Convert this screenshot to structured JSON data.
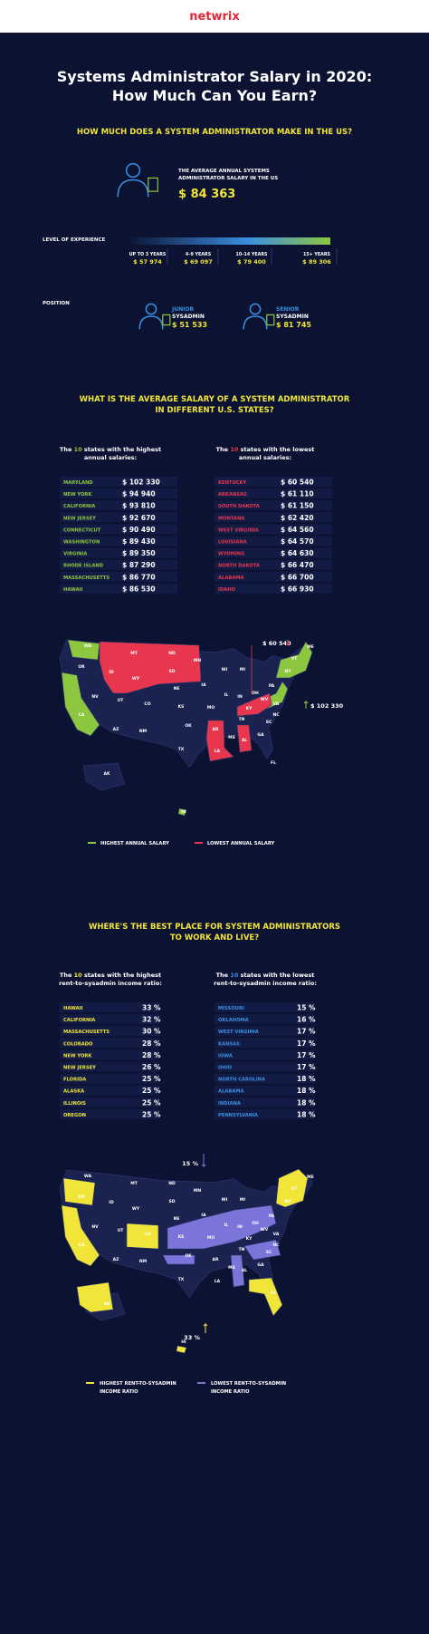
{
  "header": {
    "logo": "netwrix",
    "title": [
      "Systems Administrator Salary in 2020:",
      "How Much Can You Earn?"
    ]
  },
  "salary": {
    "heading": "HOW MUCH DOES A SYSTEM ADMINISTRATOR MAKE IN THE US?",
    "average_label": [
      "THE AVERAGE ANNUAL SYSTEMS",
      "ADMINISTRATOR SALARY IN THE US"
    ],
    "average": "$ 84 363",
    "experience": {
      "label": "LEVEL OF EXPERIENCE",
      "levels": [
        {
          "years": "UP TO 3 YEARS",
          "salary": "$ 57 974"
        },
        {
          "years": "4–9 YEARS",
          "salary": "$ 69 097"
        },
        {
          "years": "10–14 YEARS",
          "salary": "$ 79 400"
        },
        {
          "years": "15+ YEARS",
          "salary": "$ 89 306"
        }
      ]
    },
    "position": {
      "label": "POSITION",
      "roles": [
        {
          "name": [
            "JUNIOR",
            "SYSADMIN"
          ],
          "salary": "$ 51 533"
        },
        {
          "name": [
            "SENIOR",
            "SYSADMIN"
          ],
          "salary": "$ 81 745"
        }
      ]
    }
  },
  "states": {
    "heading": [
      "WHAT IS THE AVERAGE SALARY OF A SYSTEM ADMINISTRATOR",
      "IN DIFFERENT U.S. STATES?"
    ],
    "highest": {
      "intro": [
        "The ",
        "10",
        " states with the highest"
      ],
      "intro2": "annual salaries:",
      "rows": [
        [
          "MARYLAND",
          "$ 102 330"
        ],
        [
          "NEW YORK",
          "$ 94 940"
        ],
        [
          "CALIFORNIA",
          "$ 93 810"
        ],
        [
          "NEW JERSEY",
          "$ 92 670"
        ],
        [
          "CONNECTICUT",
          "$ 90 490"
        ],
        [
          "WASHINGTON",
          "$ 89 430"
        ],
        [
          "VIRGINIA",
          "$ 89 350"
        ],
        [
          "RHODE ISLAND",
          "$ 87 290"
        ],
        [
          "MASSACHUSETTS",
          "$ 86 770"
        ],
        [
          "HAWAII",
          "$ 86 530"
        ]
      ]
    },
    "lowest": {
      "intro": [
        "The ",
        "10",
        " states with the lowest"
      ],
      "intro2": "annual salaries:",
      "rows": [
        [
          "KENTUCKY",
          "$ 60 540"
        ],
        [
          "ARKANSAS",
          "$ 61 110"
        ],
        [
          "SOUTH DAKOTA",
          "$ 61 150"
        ],
        [
          "MONTANA",
          "$ 62 420"
        ],
        [
          "WEST VIRGINIA",
          "$ 64 560"
        ],
        [
          "LOUISIANA",
          "$ 64 570"
        ],
        [
          "WYOMING",
          "$ 64 630"
        ],
        [
          "NORTH DAKOTA",
          "$ 66 470"
        ],
        [
          "ALABAMA",
          "$ 66 700"
        ],
        [
          "IDAHO",
          "$ 66 930"
        ]
      ]
    },
    "callouts": [
      "$ 60 540",
      "$ 102 330"
    ],
    "legend": [
      "HIGHEST ANNUAL SALARY",
      "LOWEST ANNUAL SALARY"
    ]
  },
  "living": {
    "heading": [
      "WHERE'S THE BEST PLACE FOR SYSTEM ADMINISTRATORS",
      "TO WORK AND LIVE?"
    ],
    "highest": {
      "intro": [
        "The ",
        "10",
        " states with the highest"
      ],
      "intro2": "rent-to-sysadmin income ratio:",
      "rows": [
        [
          "HAWAII",
          "33 %"
        ],
        [
          "CALIFORNIA",
          "32 %"
        ],
        [
          "MASSACHUSETTS",
          "30 %"
        ],
        [
          "COLORADO",
          "28 %"
        ],
        [
          "NEW YORK",
          "28 %"
        ],
        [
          "NEW JERSEY",
          "26 %"
        ],
        [
          "FLORIDA",
          "25 %"
        ],
        [
          "ALASKA",
          "25 %"
        ],
        [
          "ILLINOIS",
          "25 %"
        ],
        [
          "OREGON",
          "25 %"
        ]
      ]
    },
    "lowest": {
      "intro": [
        "The ",
        "10",
        " states with the lowest"
      ],
      "intro2": "rent-to-sysadmin income ratio:",
      "rows": [
        [
          "MISSOURI",
          "15 %"
        ],
        [
          "OKLAHOMA",
          "16 %"
        ],
        [
          "WEST VIRGINIA",
          "17 %"
        ],
        [
          "KANSAS",
          "17 %"
        ],
        [
          "IOWA",
          "17 %"
        ],
        [
          "OHIO",
          "17 %"
        ],
        [
          "NORTH CAROLINA",
          "18 %"
        ],
        [
          "ALABAMA",
          "18 %"
        ],
        [
          "INDIANA",
          "18 %"
        ],
        [
          "PENNSYLVANIA",
          "18 %"
        ]
      ]
    },
    "callouts": [
      "15 %",
      "33 %"
    ],
    "legend": [
      [
        "HIGHEST RENT-TO-SYSADMIN",
        "INCOME RATIO"
      ],
      [
        "LOWEST RENT-TO-SYSADMIN",
        "INCOME RATIO"
      ]
    ]
  },
  "map_labels": [
    "WA",
    "OR",
    "ID",
    "MT",
    "ND",
    "SD",
    "WY",
    "NV",
    "UT",
    "CO",
    "CA",
    "AZ",
    "NM",
    "NE",
    "KS",
    "OK",
    "TX",
    "MN",
    "IA",
    "MO",
    "AR",
    "LA",
    "WI",
    "IL",
    "MI",
    "IN",
    "OH",
    "KY",
    "TN",
    "MS",
    "AL",
    "GA",
    "FL",
    "SC",
    "NC",
    "VA",
    "WV",
    "PA",
    "NY",
    "VT",
    "ME",
    "AK",
    "HI"
  ]
}
